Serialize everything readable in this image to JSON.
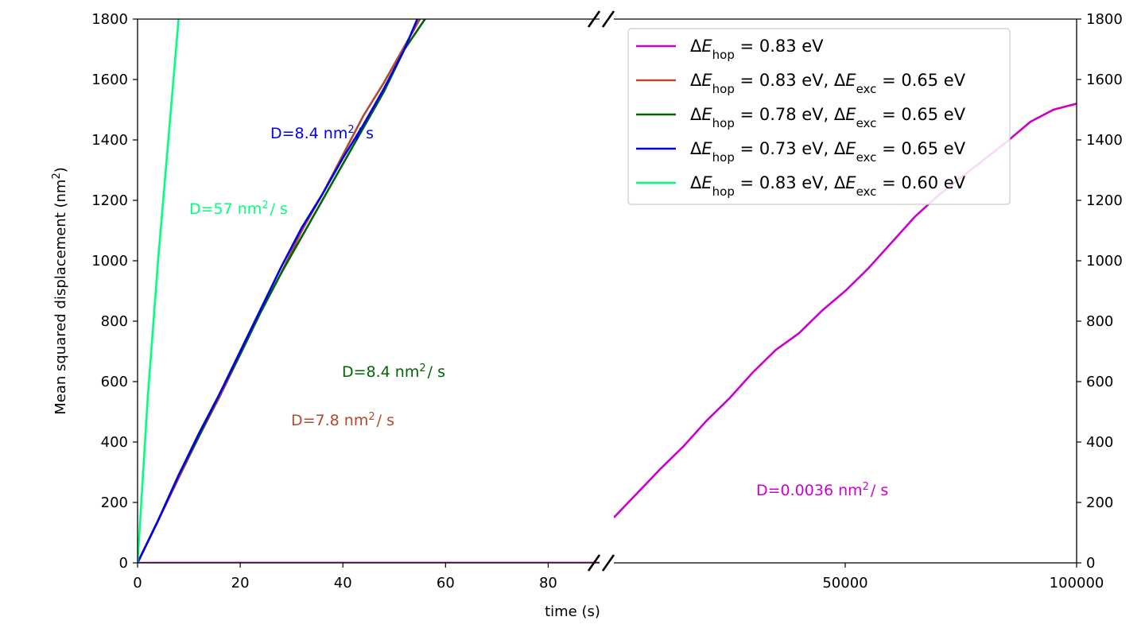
{
  "chart_data": {
    "type": "line",
    "title": "",
    "xlabel": "time (s)",
    "ylabel": "Mean squared displacement (nm",
    "ylabel_sup": "2",
    "ylabel_close": ")",
    "ylim": [
      0,
      1800
    ],
    "y_ticks": [
      "0",
      "200",
      "400",
      "600",
      "800",
      "1000",
      "1200",
      "1400",
      "1600",
      "1800"
    ],
    "x_broken_axis": true,
    "left_panel": {
      "xlim": [
        0,
        90
      ],
      "x_ticks": [
        "0",
        "20",
        "40",
        "60",
        "80"
      ]
    },
    "right_panel": {
      "xlim": [
        0,
        100000
      ],
      "x_ticks": [
        "50000",
        "100000"
      ]
    },
    "legend_position": "top-right",
    "series": [
      {
        "key": "s1",
        "name_parts": {
          "hop": "0.83 eV",
          "exc": ""
        },
        "color": "#cc00cc",
        "panel_left": {
          "x": [
            0,
            90
          ],
          "y": [
            0,
            0.3
          ]
        },
        "panel_right": {
          "x": [
            0,
            5000,
            10000,
            15000,
            20000,
            25000,
            30000,
            35000,
            40000,
            45000,
            50000,
            55000,
            60000,
            65000,
            70000,
            75000,
            80000,
            85000,
            90000,
            95000,
            100000
          ],
          "y": [
            150,
            230,
            310,
            385,
            470,
            545,
            630,
            705,
            760,
            835,
            900,
            975,
            1060,
            1145,
            1215,
            1275,
            1335,
            1395,
            1460,
            1500,
            1520
          ]
        }
      },
      {
        "key": "s2",
        "name_parts": {
          "hop": "0.83 eV",
          "exc": "0.65 eV"
        },
        "color": "#b34a2e",
        "panel_left": {
          "x": [
            0,
            4,
            8,
            12,
            16,
            20,
            24,
            28,
            32,
            36,
            40,
            44,
            48,
            52,
            55
          ],
          "y": [
            0,
            140,
            280,
            420,
            550,
            690,
            830,
            960,
            1100,
            1220,
            1350,
            1480,
            1590,
            1710,
            1800
          ]
        }
      },
      {
        "key": "s3",
        "name_parts": {
          "hop": "0.78 eV",
          "exc": "0.65 eV"
        },
        "color": "#006400",
        "panel_left": {
          "x": [
            0,
            4,
            8,
            12,
            16,
            20,
            24,
            28,
            32,
            36,
            40,
            44,
            48,
            52,
            56
          ],
          "y": [
            0,
            140,
            290,
            420,
            560,
            690,
            830,
            960,
            1080,
            1200,
            1320,
            1440,
            1560,
            1700,
            1800
          ]
        }
      },
      {
        "key": "s4",
        "name_parts": {
          "hop": "0.73 eV",
          "exc": "0.65 eV"
        },
        "color": "#0000ee",
        "panel_left": {
          "x": [
            0,
            4,
            8,
            12,
            16,
            20,
            24,
            28,
            32,
            36,
            40,
            44,
            48,
            52,
            54.5
          ],
          "y": [
            0,
            140,
            290,
            430,
            560,
            700,
            840,
            980,
            1110,
            1220,
            1340,
            1450,
            1570,
            1700,
            1800
          ]
        }
      },
      {
        "key": "s5",
        "name_parts": {
          "hop": "0.83 eV",
          "exc": "0.60 eV"
        },
        "color": "#00ff7f",
        "panel_left": {
          "x": [
            0,
            2,
            4,
            6,
            8
          ],
          "y": [
            0,
            550,
            1000,
            1400,
            1800
          ]
        }
      }
    ],
    "annotations": [
      {
        "prefix": "D=8.4 nm",
        "sup": "2",
        "suffix": "/ s",
        "color": "#0000ee"
      },
      {
        "prefix": "D=57 nm",
        "sup": "2",
        "suffix": "/ s",
        "color": "#00ff7f"
      },
      {
        "prefix": "D=8.4 nm",
        "sup": "2",
        "suffix": "/ s",
        "color": "#006400"
      },
      {
        "prefix": "D=7.8 nm",
        "sup": "2",
        "suffix": "/ s",
        "color": "#b34a2e"
      },
      {
        "prefix": "D=0.0036 nm",
        "sup": "2",
        "suffix": "/ s",
        "color": "#cc00cc"
      }
    ],
    "legend_labels": {
      "delta": "Δ",
      "E": "E",
      "hop_sub": "hop",
      "exc_sub": "exc",
      "eq": " = ",
      "sep": ", "
    }
  }
}
